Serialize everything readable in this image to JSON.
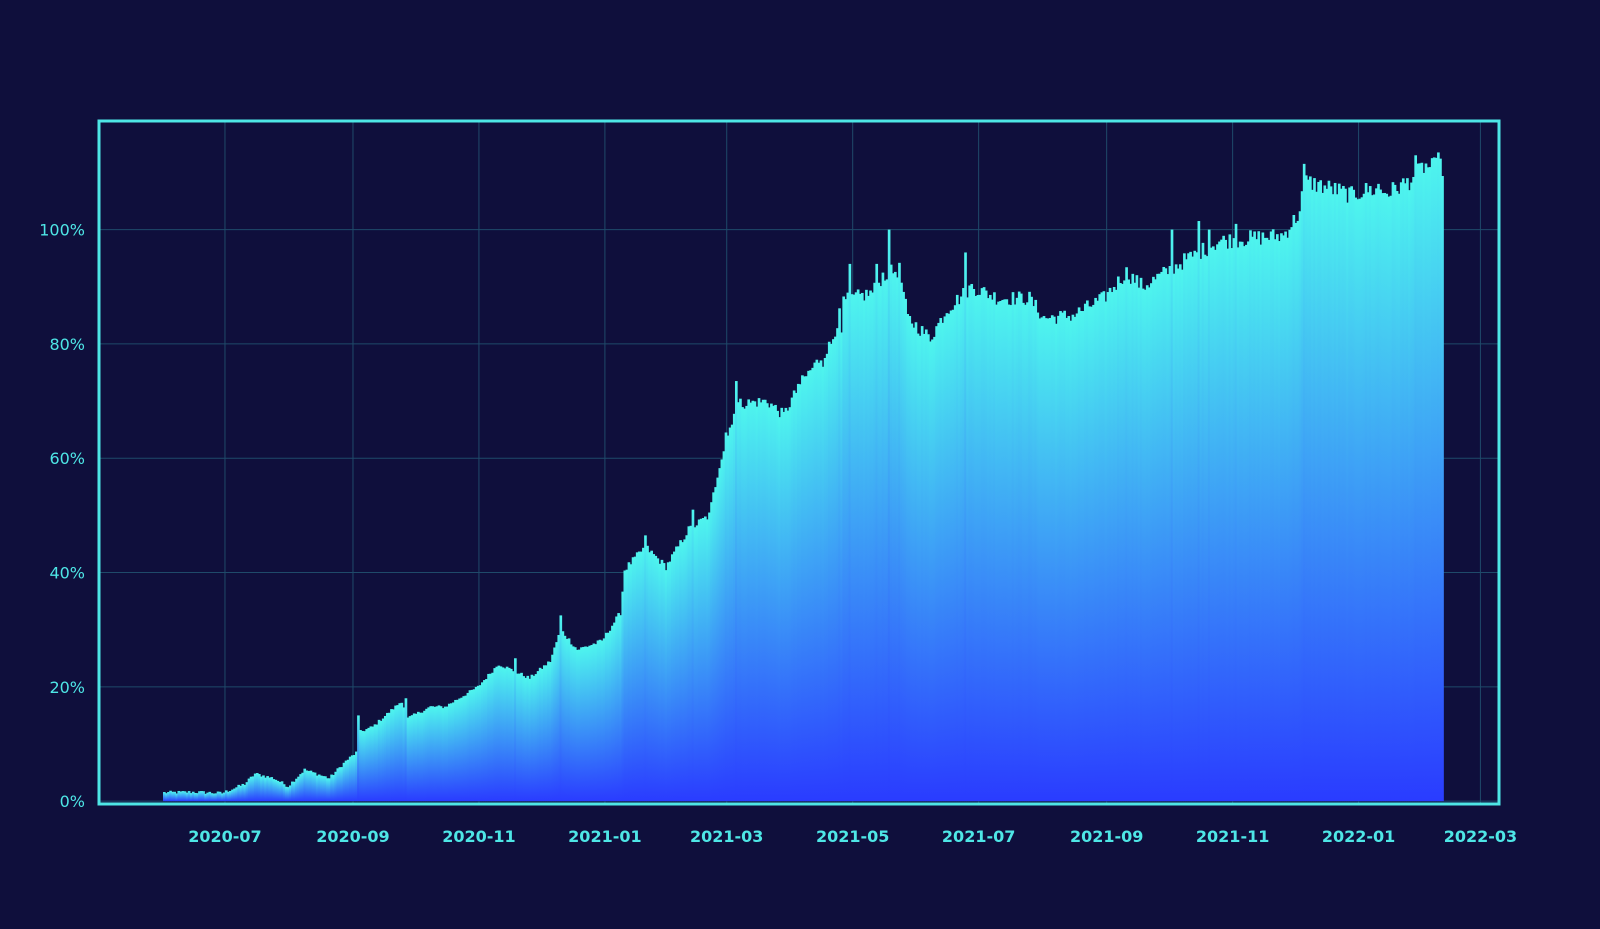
{
  "colors": {
    "background": "#0f0f3c",
    "frame": "#4ee6e6",
    "grid": "#1f4a6a",
    "tick_text": "#4ee6e6",
    "fill_top": "#4ef5ee",
    "fill_bottom": "#2a3cff"
  },
  "chart_data": {
    "type": "bar",
    "title": "",
    "xlabel": "",
    "ylabel": "",
    "x_start": "2020-06-01",
    "x_end": "2022-02-10",
    "xlim": [
      "2020-05-01",
      "2022-03-10"
    ],
    "ylim": [
      -0.5,
      119
    ],
    "x_ticks": [
      "2020-07",
      "2020-09",
      "2020-11",
      "2021-01",
      "2021-03",
      "2021-05",
      "2021-07",
      "2021-09",
      "2021-11",
      "2022-01",
      "2022-03"
    ],
    "y_ticks": [
      0,
      20,
      40,
      60,
      80,
      100
    ],
    "y_tick_labels": [
      "0%",
      "20%",
      "40%",
      "60%",
      "80%",
      "100%"
    ],
    "grid": true,
    "legend": "none",
    "anchors": [
      [
        "2020-06-01",
        1.5
      ],
      [
        "2020-06-15",
        1.6
      ],
      [
        "2020-06-29",
        1.4
      ],
      [
        "2020-07-10",
        3.0
      ],
      [
        "2020-07-15",
        4.8
      ],
      [
        "2020-07-24",
        4.0
      ],
      [
        "2020-07-31",
        2.6
      ],
      [
        "2020-08-08",
        5.5
      ],
      [
        "2020-08-20",
        4.0
      ],
      [
        "2020-08-28",
        7.0
      ],
      [
        "2020-09-02",
        8.5
      ],
      [
        "2020-09-03",
        12.0
      ],
      [
        "2020-09-10",
        13.0
      ],
      [
        "2020-09-24",
        17.5
      ],
      [
        "2020-09-27",
        14.5
      ],
      [
        "2020-10-08",
        16.5
      ],
      [
        "2020-10-15",
        16.5
      ],
      [
        "2020-10-31",
        20.0
      ],
      [
        "2020-11-10",
        24.0
      ],
      [
        "2020-11-25",
        21.5
      ],
      [
        "2020-12-05",
        24.5
      ],
      [
        "2020-12-10",
        30.0
      ],
      [
        "2020-12-18",
        26.5
      ],
      [
        "2020-12-30",
        28.0
      ],
      [
        "2021-01-08",
        33.0
      ],
      [
        "2021-01-10",
        40.5
      ],
      [
        "2021-01-20",
        44.5
      ],
      [
        "2021-01-30",
        41.0
      ],
      [
        "2021-02-10",
        47.5
      ],
      [
        "2021-02-20",
        50.0
      ],
      [
        "2021-02-25",
        59.0
      ],
      [
        "2021-03-01",
        64.0
      ],
      [
        "2021-03-05",
        69.5
      ],
      [
        "2021-03-20",
        70.0
      ],
      [
        "2021-03-28",
        67.5
      ],
      [
        "2021-04-05",
        73.0
      ],
      [
        "2021-04-20",
        80.0
      ],
      [
        "2021-04-26",
        87.5
      ],
      [
        "2021-05-10",
        89.0
      ],
      [
        "2021-05-15",
        92.0
      ],
      [
        "2021-05-23",
        93.0
      ],
      [
        "2021-05-27",
        84.5
      ],
      [
        "2021-06-07",
        81.0
      ],
      [
        "2021-06-15",
        86.0
      ],
      [
        "2021-06-27",
        90.0
      ],
      [
        "2021-07-10",
        88.0
      ],
      [
        "2021-07-25",
        88.0
      ],
      [
        "2021-08-01",
        84.5
      ],
      [
        "2021-08-15",
        85.0
      ],
      [
        "2021-08-30",
        88.0
      ],
      [
        "2021-09-10",
        92.5
      ],
      [
        "2021-09-18",
        90.0
      ],
      [
        "2021-10-10",
        95.0
      ],
      [
        "2021-10-25",
        98.0
      ],
      [
        "2021-11-10",
        98.5
      ],
      [
        "2021-11-25",
        99.0
      ],
      [
        "2021-12-03",
        103.0
      ],
      [
        "2021-12-05",
        108.5
      ],
      [
        "2021-12-20",
        107.0
      ],
      [
        "2021-12-28",
        106.0
      ],
      [
        "2022-01-05",
        107.0
      ],
      [
        "2022-01-15",
        106.5
      ],
      [
        "2022-01-25",
        108.5
      ],
      [
        "2022-02-01",
        111.0
      ],
      [
        "2022-02-10",
        111.0
      ]
    ],
    "spikes": [
      [
        "2020-09-03",
        15.0
      ],
      [
        "2020-09-26",
        18.0
      ],
      [
        "2020-11-18",
        25.0
      ],
      [
        "2020-12-10",
        32.5
      ],
      [
        "2021-01-20",
        46.5
      ],
      [
        "2021-02-12",
        51.0
      ],
      [
        "2021-02-28",
        64.5
      ],
      [
        "2021-03-05",
        73.5
      ],
      [
        "2021-04-04",
        73.0
      ],
      [
        "2021-04-16",
        76.0
      ],
      [
        "2021-04-25",
        82.0
      ],
      [
        "2021-04-29",
        94.0
      ],
      [
        "2021-05-12",
        94.0
      ],
      [
        "2021-05-18",
        100.0
      ],
      [
        "2021-06-24",
        96.0
      ],
      [
        "2021-10-02",
        100.0
      ],
      [
        "2021-10-15",
        101.5
      ],
      [
        "2021-10-20",
        100.0
      ],
      [
        "2021-11-02",
        101.0
      ],
      [
        "2021-12-05",
        111.5
      ],
      [
        "2022-01-10",
        108.0
      ],
      [
        "2022-01-28",
        113.0
      ],
      [
        "2022-02-05",
        112.5
      ],
      [
        "2022-02-08",
        113.5
      ]
    ]
  }
}
